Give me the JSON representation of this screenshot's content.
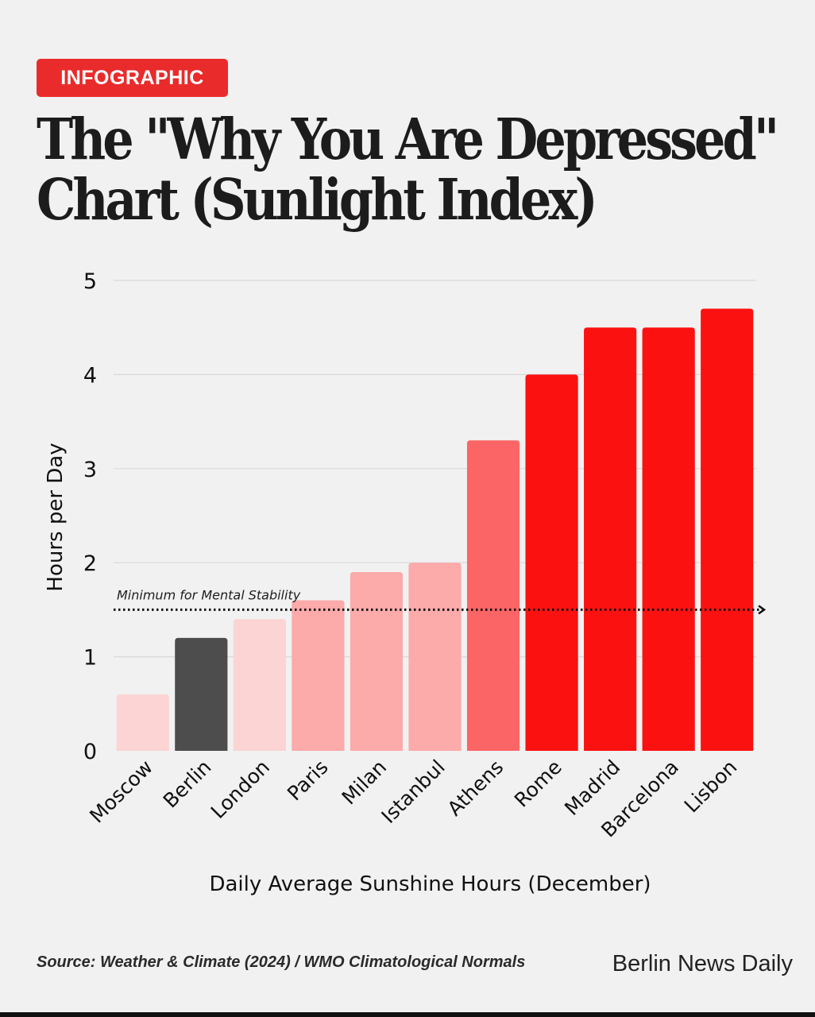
{
  "header": {
    "badge": "INFOGRAPHIC",
    "title_line1": "The \"Why You Are Depressed\"",
    "title_line2": "Chart (Sunlight Index)"
  },
  "chart_data": {
    "type": "bar",
    "categories": [
      "Moscow",
      "Berlin",
      "London",
      "Paris",
      "Milan",
      "Istanbul",
      "Athens",
      "Rome",
      "Madrid",
      "Barcelona",
      "Lisbon"
    ],
    "values": [
      0.6,
      1.2,
      1.4,
      1.6,
      1.9,
      2.0,
      3.3,
      4.0,
      4.5,
      4.5,
      4.7
    ],
    "bar_colors": [
      "#fcd4d4",
      "#4d4d4d",
      "#fcd4d4",
      "#fcaaaa",
      "#fcaaaa",
      "#fcaaaa",
      "#fc6565",
      "#fc1111",
      "#fc1111",
      "#fc1111",
      "#fc1111"
    ],
    "title": "The \"Why You Are Depressed\" Chart (Sunlight Index)",
    "xlabel": "Daily Average Sunshine Hours (December)",
    "ylabel": "Hours per Day",
    "ylim": [
      0,
      5
    ],
    "yticks": [
      0,
      1,
      2,
      3,
      4,
      5
    ],
    "grid": true,
    "reference_line": {
      "value": 1.5,
      "label": "Minimum for Mental Stability"
    }
  },
  "footer": {
    "source": "Source: Weather & Climate (2024) / WMO Climatological Normals",
    "brand": "Berlin News Daily"
  }
}
